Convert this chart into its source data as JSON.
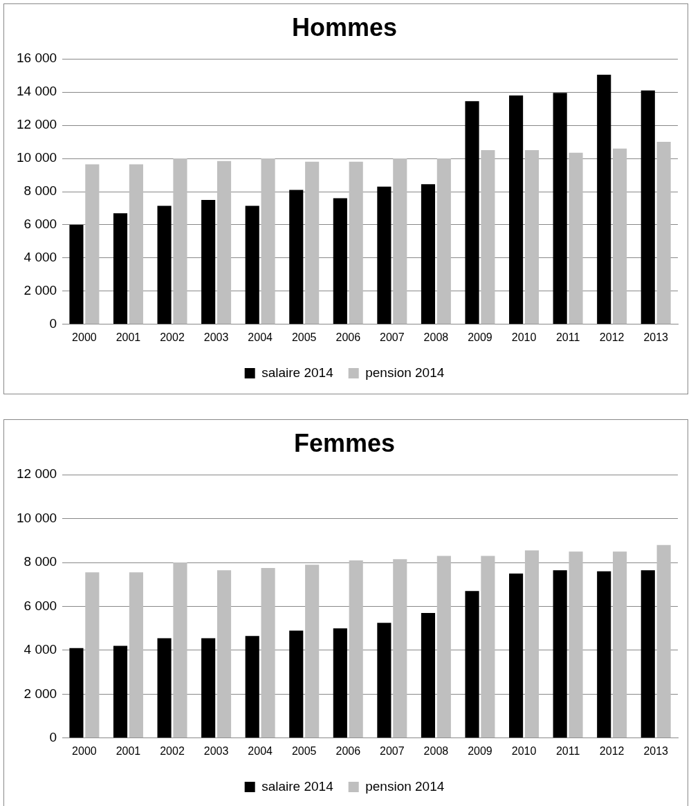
{
  "chart_data": [
    {
      "type": "bar",
      "title": "Hommes",
      "categories": [
        "2000",
        "2001",
        "2002",
        "2003",
        "2004",
        "2005",
        "2006",
        "2007",
        "2008",
        "2009",
        "2010",
        "2011",
        "2012",
        "2013"
      ],
      "series": [
        {
          "name": "salaire 2014",
          "color": "#000000",
          "values": [
            6000,
            6700,
            7150,
            7500,
            7150,
            8100,
            7600,
            8300,
            8450,
            13450,
            13800,
            13950,
            15050,
            14100
          ]
        },
        {
          "name": "pension 2014",
          "color": "#bfbfbf",
          "values": [
            9650,
            9650,
            10000,
            9850,
            10000,
            9800,
            9800,
            10000,
            10000,
            10500,
            10500,
            10350,
            10600,
            11000
          ]
        }
      ],
      "ylim": [
        0,
        16000
      ],
      "yticks": [
        0,
        {
          "value": 2000,
          "label": "2 000"
        },
        {
          "value": 4000,
          "label": "4 000"
        },
        {
          "value": 6000,
          "label": "6 000"
        },
        {
          "value": 8000,
          "label": "8 000"
        },
        {
          "value": 10000,
          "label": "10 000"
        },
        {
          "value": 12000,
          "label": "12 000"
        },
        {
          "value": 14000,
          "label": "14 000"
        },
        {
          "value": 16000,
          "label": "16 000"
        }
      ],
      "grid": "y",
      "legend": "bottom"
    },
    {
      "type": "bar",
      "title": "Femmes",
      "categories": [
        "2000",
        "2001",
        "2002",
        "2003",
        "2004",
        "2005",
        "2006",
        "2007",
        "2008",
        "2009",
        "2010",
        "2011",
        "2012",
        "2013"
      ],
      "series": [
        {
          "name": "salaire 2014",
          "color": "#000000",
          "values": [
            4100,
            4200,
            4550,
            4550,
            4650,
            4900,
            5000,
            5250,
            5700,
            6700,
            7500,
            7650,
            7600,
            7650
          ]
        },
        {
          "name": "pension 2014",
          "color": "#bfbfbf",
          "values": [
            7550,
            7550,
            8000,
            7650,
            7750,
            7900,
            8100,
            8150,
            8300,
            8300,
            8550,
            8500,
            8500,
            8800
          ]
        }
      ],
      "ylim": [
        0,
        12000
      ],
      "yticks": [
        0,
        {
          "value": 2000,
          "label": "2 000"
        },
        {
          "value": 4000,
          "label": "4 000"
        },
        {
          "value": 6000,
          "label": "6 000"
        },
        {
          "value": 8000,
          "label": "8 000"
        },
        {
          "value": 10000,
          "label": "10 000"
        },
        {
          "value": 12000,
          "label": "12 000"
        }
      ],
      "grid": "y",
      "legend": "bottom"
    }
  ]
}
